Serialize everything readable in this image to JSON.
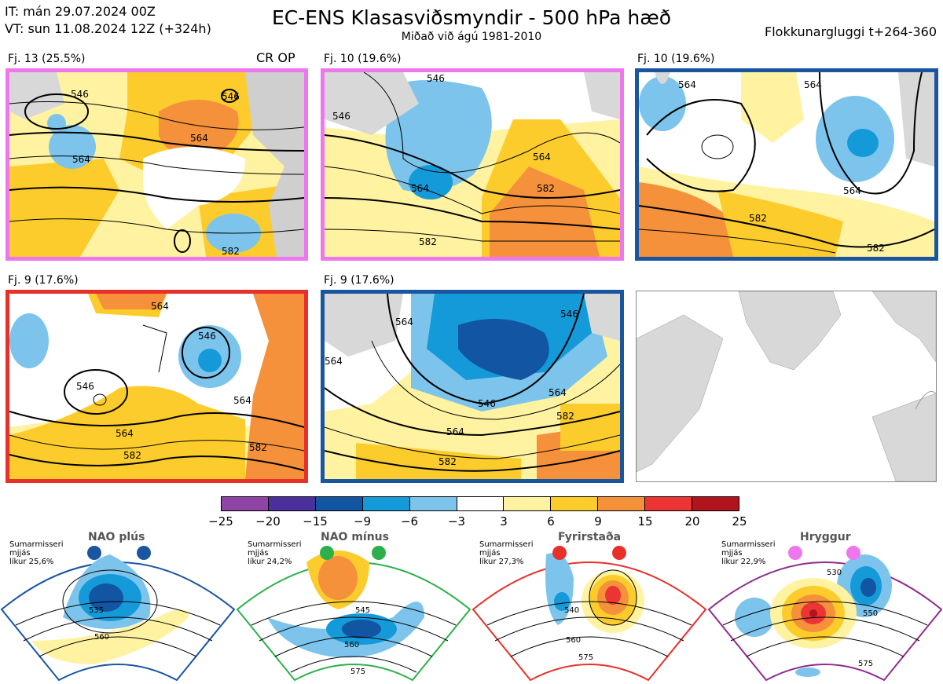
{
  "header": {
    "it": "IT: mán 29.07.2024 00Z",
    "vt": "VT: sun 11.08.2024 12Z  (+324h)",
    "title": "EC-ENS Klasasviðsmyndir - 500 hPa hæð",
    "subtitle": "Miðað við ágú 1981-2010",
    "window": "Flokkunargluggi t+264-360"
  },
  "panels": [
    {
      "label": "Fj. 13 (25.5%)",
      "tag": "CR OP",
      "frame_color": "#ee77ee",
      "contours": [
        "546",
        "564",
        "546",
        "564",
        "582"
      ]
    },
    {
      "label": "Fj. 10 (19.6%)",
      "tag": "",
      "frame_color": "#ee77ee",
      "contours": [
        "546",
        "546",
        "564",
        "564",
        "582",
        "582"
      ]
    },
    {
      "label": "Fj. 10 (19.6%)",
      "tag": "",
      "frame_color": "#1a56a0",
      "contours": [
        "564",
        "564",
        "564",
        "582",
        "582"
      ]
    },
    {
      "label": "Fj. 9 (17.6%)",
      "tag": "",
      "frame_color": "#e8302a",
      "contours": [
        "564",
        "546",
        "546",
        "564",
        "564",
        "582",
        "582"
      ]
    },
    {
      "label": "Fj. 9 (17.6%)",
      "tag": "",
      "frame_color": "#1a56a0",
      "contours": [
        "564",
        "546",
        "546",
        "564",
        "564",
        "582",
        "582",
        "564"
      ]
    }
  ],
  "colorbar": {
    "ticks": [
      "−25",
      "−20",
      "−15",
      "−9",
      "−6",
      "−3",
      "3",
      "6",
      "9",
      "15",
      "20",
      "25"
    ],
    "colors": [
      "#8e44a5",
      "#4b2f9c",
      "#1155a3",
      "#159ad9",
      "#7cc4ec",
      "#ffffff",
      "#fff2a0",
      "#fccc2c",
      "#f5913a",
      "#ec3434",
      "#b0141c"
    ]
  },
  "regimes": [
    {
      "title": "NAO plús",
      "season": "Sumarmisseri",
      "mean": "mjjás",
      "prob": "líkur 25,6%",
      "color": "#1a56a0",
      "contours": [
        "535",
        "560"
      ]
    },
    {
      "title": "NAO mínus",
      "season": "Sumarmisseri",
      "mean": "mjjás",
      "prob": "líkur 24,2%",
      "color": "#2db04b",
      "contours": [
        "545",
        "560",
        "575"
      ]
    },
    {
      "title": "Fyrirstaða",
      "season": "Sumarmisseri",
      "mean": "mjjás",
      "prob": "líkur 27,3%",
      "color": "#e8302a",
      "contours": [
        "540",
        "560",
        "575"
      ]
    },
    {
      "title": "Hryggur",
      "season": "Sumarmisseri",
      "mean": "mjjás",
      "prob": "líkur 22,9%",
      "color": "#ee77ee",
      "contours": [
        "530",
        "550",
        "575"
      ]
    }
  ]
}
